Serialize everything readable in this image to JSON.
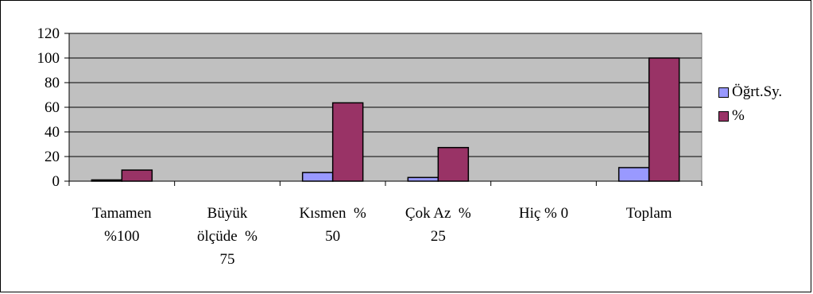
{
  "chart_data": {
    "type": "bar",
    "title": "",
    "xlabel": "",
    "ylabel": "",
    "ylim": [
      0,
      120
    ],
    "yticks": [
      0,
      20,
      40,
      60,
      80,
      100,
      120
    ],
    "grid": true,
    "legend_position": "right",
    "categories": [
      [
        "Tamamen",
        "%100"
      ],
      [
        "Büyük",
        "ölçüde  %",
        "75"
      ],
      [
        "Kısmen  %",
        "50"
      ],
      [
        "Çok Az  %",
        "25"
      ],
      [
        "Hiç % 0"
      ],
      [
        "Toplam"
      ]
    ],
    "series": [
      {
        "name": "Öğrt.Sy.",
        "color": "#9999ff",
        "values": [
          1,
          0,
          7,
          3,
          0,
          11
        ]
      },
      {
        "name": "%",
        "color": "#993366",
        "values": [
          9,
          0,
          63.6,
          27.3,
          0,
          100
        ]
      }
    ],
    "plot_background": "#c0c0c0"
  }
}
